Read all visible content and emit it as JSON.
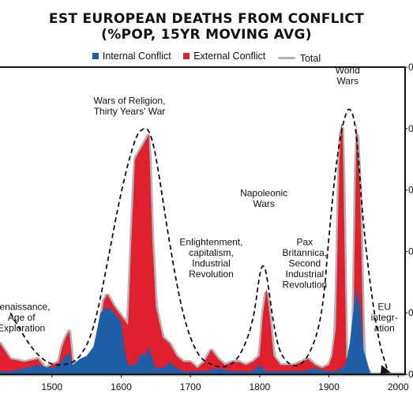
{
  "chart_data": {
    "type": "area",
    "title_line1": "EST EUROPEAN DEATHS FROM CONFLICT",
    "title_line2": "(%POP, 15YR MOVING AVG)",
    "xlim": [
      1425,
      2010
    ],
    "ylim": [
      0,
      1.0
    ],
    "x_ticks": [
      1500,
      1600,
      1700,
      1800,
      1900,
      2000
    ],
    "y_ticks_right": [
      "0",
      "0",
      "0",
      "0",
      "0",
      "0"
    ],
    "legend_position": "top",
    "colors": {
      "internal": "#1f5fa8",
      "external": "#e0202e",
      "total": "#b4b4b4",
      "axis": "#111111",
      "trend": "#111111"
    },
    "series": [
      {
        "name": "Internal Conflict",
        "x": [
          1425,
          1440,
          1460,
          1480,
          1500,
          1510,
          1520,
          1525,
          1530,
          1540,
          1550,
          1560,
          1570,
          1580,
          1590,
          1600,
          1605,
          1610,
          1620,
          1630,
          1635,
          1640,
          1645,
          1650,
          1660,
          1670,
          1680,
          1690,
          1700,
          1720,
          1740,
          1760,
          1780,
          1790,
          1800,
          1805,
          1810,
          1815,
          1820,
          1840,
          1860,
          1880,
          1900,
          1910,
          1915,
          1920,
          1925,
          1930,
          1935,
          1940,
          1945,
          1950,
          1960,
          2000
        ],
        "values": [
          0.01,
          0.01,
          0.02,
          0.03,
          0.02,
          0.03,
          0.06,
          0.07,
          0.03,
          0.05,
          0.06,
          0.09,
          0.2,
          0.22,
          0.2,
          0.17,
          0.08,
          0.03,
          0.03,
          0.07,
          0.06,
          0.09,
          0.05,
          0.02,
          0.02,
          0.04,
          0.02,
          0.01,
          0.01,
          0.01,
          0.02,
          0.01,
          0.01,
          0.01,
          0.03,
          0.02,
          0.01,
          0.01,
          0.01,
          0.01,
          0.01,
          0.02,
          0.01,
          0.01,
          0.02,
          0.02,
          0.04,
          0.1,
          0.2,
          0.28,
          0.22,
          0.08,
          0.0,
          0.0
        ]
      },
      {
        "name": "External Conflict",
        "x": [
          1425,
          1440,
          1460,
          1480,
          1490,
          1500,
          1510,
          1515,
          1520,
          1525,
          1530,
          1540,
          1550,
          1560,
          1570,
          1575,
          1580,
          1590,
          1600,
          1610,
          1615,
          1620,
          1625,
          1630,
          1640,
          1645,
          1650,
          1660,
          1670,
          1680,
          1690,
          1700,
          1710,
          1720,
          1730,
          1740,
          1750,
          1760,
          1770,
          1780,
          1790,
          1800,
          1805,
          1810,
          1815,
          1820,
          1830,
          1840,
          1850,
          1860,
          1870,
          1880,
          1890,
          1900,
          1905,
          1910,
          1915,
          1918,
          1920,
          1925,
          1930,
          1935,
          1940,
          1945,
          1950,
          1955,
          1960,
          2000
        ],
        "values": [
          0.1,
          0.05,
          0.04,
          0.05,
          0.02,
          0.03,
          0.04,
          0.09,
          0.12,
          0.14,
          0.03,
          0.04,
          0.05,
          0.06,
          0.16,
          0.24,
          0.26,
          0.22,
          0.19,
          0.16,
          0.45,
          0.7,
          0.72,
          0.74,
          0.78,
          0.44,
          0.22,
          0.12,
          0.1,
          0.06,
          0.04,
          0.04,
          0.02,
          0.04,
          0.08,
          0.05,
          0.03,
          0.04,
          0.04,
          0.03,
          0.04,
          0.06,
          0.2,
          0.28,
          0.18,
          0.06,
          0.03,
          0.03,
          0.03,
          0.04,
          0.05,
          0.03,
          0.02,
          0.03,
          0.06,
          0.15,
          0.7,
          0.82,
          0.78,
          0.05,
          0.07,
          0.1,
          0.82,
          0.6,
          0.06,
          0.02,
          0.0,
          0.0
        ]
      }
    ],
    "trend_path": {
      "x": [
        1440,
        1460,
        1480,
        1500,
        1520,
        1540,
        1560,
        1580,
        1600,
        1620,
        1630,
        1640,
        1650,
        1670,
        1690,
        1710,
        1730,
        1750,
        1770,
        1790,
        1800,
        1805,
        1810,
        1820,
        1830,
        1850,
        1870,
        1890,
        1900,
        1910,
        1920,
        1930,
        1940,
        1950,
        1970,
        1985
      ],
      "values": [
        0.2,
        0.12,
        0.06,
        0.03,
        0.03,
        0.05,
        0.14,
        0.36,
        0.6,
        0.77,
        0.8,
        0.8,
        0.72,
        0.42,
        0.18,
        0.06,
        0.03,
        0.02,
        0.05,
        0.16,
        0.33,
        0.36,
        0.33,
        0.16,
        0.06,
        0.02,
        0.05,
        0.18,
        0.45,
        0.68,
        0.82,
        0.88,
        0.8,
        0.46,
        0.12,
        0.01
      ]
    },
    "annotations": [
      {
        "id": "renaissance",
        "lines": [
          "Renaissance,",
          "Age of",
          "Exploration"
        ],
        "x": 1456,
        "y": 0.21
      },
      {
        "id": "religion",
        "lines": [
          "Wars of Religion,",
          "Thirty Years' War"
        ],
        "x": 1612,
        "y": 0.88
      },
      {
        "id": "enlightenment",
        "lines": [
          "Enlightenment,",
          "capitalism,",
          "Industrial",
          "Revolution"
        ],
        "x": 1730,
        "y": 0.42
      },
      {
        "id": "napoleonic",
        "lines": [
          "Napoleonic",
          "Wars"
        ],
        "x": 1806,
        "y": 0.58
      },
      {
        "id": "pax",
        "lines": [
          "Pax",
          "Britannica,",
          "Second",
          "Industrial",
          "Revolution"
        ],
        "x": 1865,
        "y": 0.42
      },
      {
        "id": "world",
        "lines": [
          "World",
          "Wars"
        ],
        "x": 1927,
        "y": 0.98
      },
      {
        "id": "eu",
        "lines": [
          "EU",
          "integr-",
          "ation"
        ],
        "x": 1980,
        "y": 0.21
      }
    ]
  }
}
